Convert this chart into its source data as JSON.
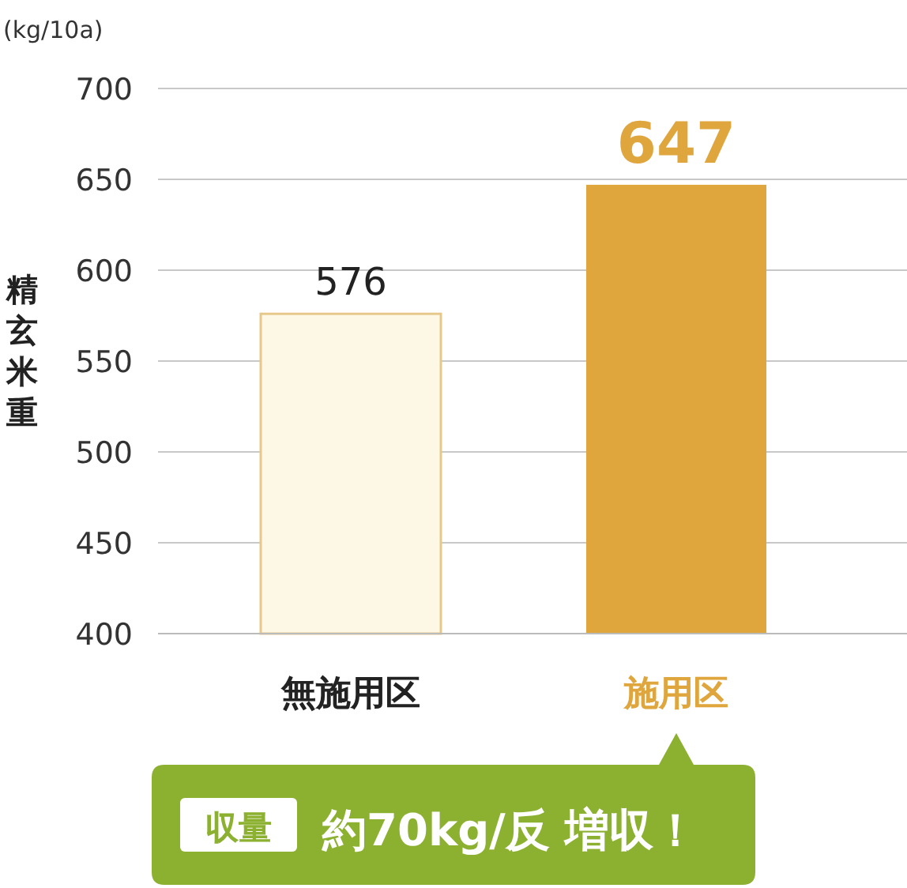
{
  "chart_data": {
    "type": "bar",
    "ylabel": "精玄米重",
    "categories": [
      "無施用区",
      "施用区"
    ],
    "values": [
      576,
      647
    ],
    "colors": [
      "#fdf8e6",
      "#e0a63e"
    ],
    "ylim": [
      400,
      700
    ],
    "yticks": [
      400,
      450,
      500,
      550,
      600,
      650,
      700
    ],
    "grid": "y",
    "data_labels": true,
    "annotations": [
      "(kg/10a)",
      "収量",
      "約70kg/反 増収！"
    ]
  }
}
